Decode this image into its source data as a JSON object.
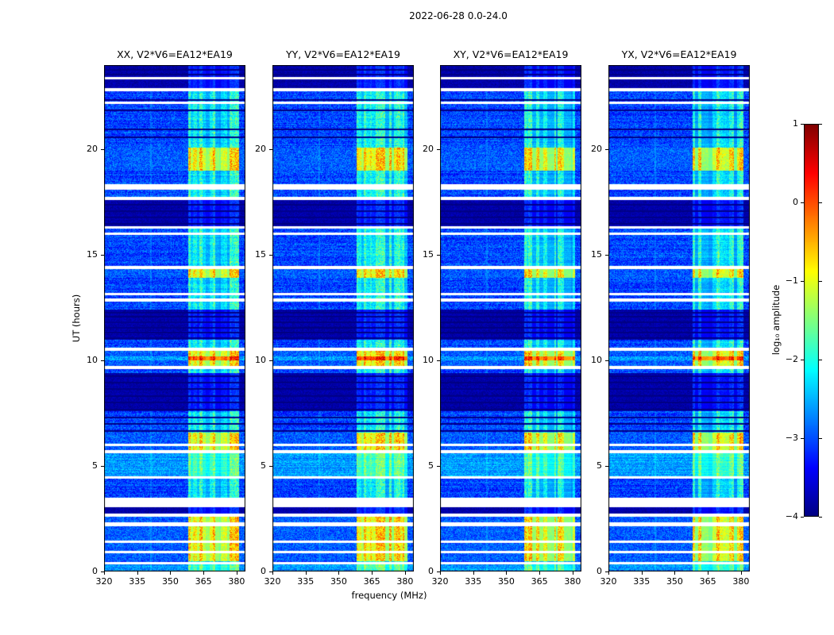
{
  "chart_data": {
    "type": "heatmap",
    "title": "2022-06-28 0.0-24.0",
    "xlabel": "frequency (MHz)",
    "ylabel": "UT (hours)",
    "panels": [
      {
        "title": "XX, V2*V6=EA12*EA19"
      },
      {
        "title": "YY, V2*V6=EA12*EA19"
      },
      {
        "title": "XY, V2*V6=EA12*EA19"
      },
      {
        "title": "YX, V2*V6=EA12*EA19"
      }
    ],
    "x_range_mhz": [
      320,
      384
    ],
    "y_range_hours": [
      0,
      24
    ],
    "x_ticks": [
      320,
      335,
      350,
      365,
      380
    ],
    "y_ticks": [
      0,
      5,
      10,
      15,
      20
    ],
    "colorbar": {
      "label": "log₁₀ amplitude",
      "ticks": [
        1,
        0,
        -1,
        -2,
        -3,
        -4
      ],
      "range": [
        -4,
        1
      ],
      "colormap": "jet"
    },
    "background_level_log10": -3.4,
    "rfi_band_mhz": [
      358,
      381
    ],
    "features": {
      "gaps_hours": [
        [
          0.35,
          0.47
        ],
        [
          0.85,
          0.97
        ],
        [
          1.35,
          1.47
        ],
        [
          2.15,
          2.32
        ],
        [
          2.6,
          2.75
        ],
        [
          3.05,
          3.5
        ],
        [
          4.4,
          4.52
        ],
        [
          5.6,
          5.75
        ],
        [
          5.95,
          6.07
        ],
        [
          9.6,
          9.75
        ],
        [
          10.45,
          10.6
        ],
        [
          12.8,
          12.95
        ],
        [
          13.08,
          13.2
        ],
        [
          14.35,
          14.5
        ],
        [
          15.95,
          16.07
        ],
        [
          16.25,
          16.37
        ],
        [
          17.6,
          17.75
        ],
        [
          18.1,
          18.35
        ],
        [
          22.15,
          22.27
        ],
        [
          22.75,
          22.9
        ],
        [
          23.33,
          23.43
        ]
      ],
      "dark_bands_hours": [
        [
          2.75,
          3.05
        ],
        [
          7.6,
          9.4
        ],
        [
          11.0,
          12.4
        ],
        [
          16.37,
          17.6
        ],
        [
          22.9,
          24.0
        ]
      ],
      "dark_lines_hours": [
        6.7,
        7.05,
        7.35,
        7.7,
        8.05,
        8.35,
        8.7,
        9.0,
        9.3,
        11.1,
        11.35,
        11.6,
        11.85,
        12.1,
        12.3,
        16.5,
        16.8,
        17.1,
        17.4,
        20.6,
        21.0,
        21.9,
        22.4,
        23.6,
        23.8
      ],
      "bright_band_hours": [
        [
          0.5,
          2.6
        ],
        [
          5.75,
          6.6
        ],
        [
          9.75,
          10.0
        ],
        [
          10.2,
          10.45
        ],
        [
          13.9,
          14.35
        ],
        [
          19.0,
          20.1
        ]
      ],
      "hot_band_hours": [
        [
          10.0,
          10.2
        ]
      ],
      "bright_full_hours": [
        [
          0.0,
          0.35
        ],
        [
          4.52,
          5.6
        ]
      ]
    }
  }
}
